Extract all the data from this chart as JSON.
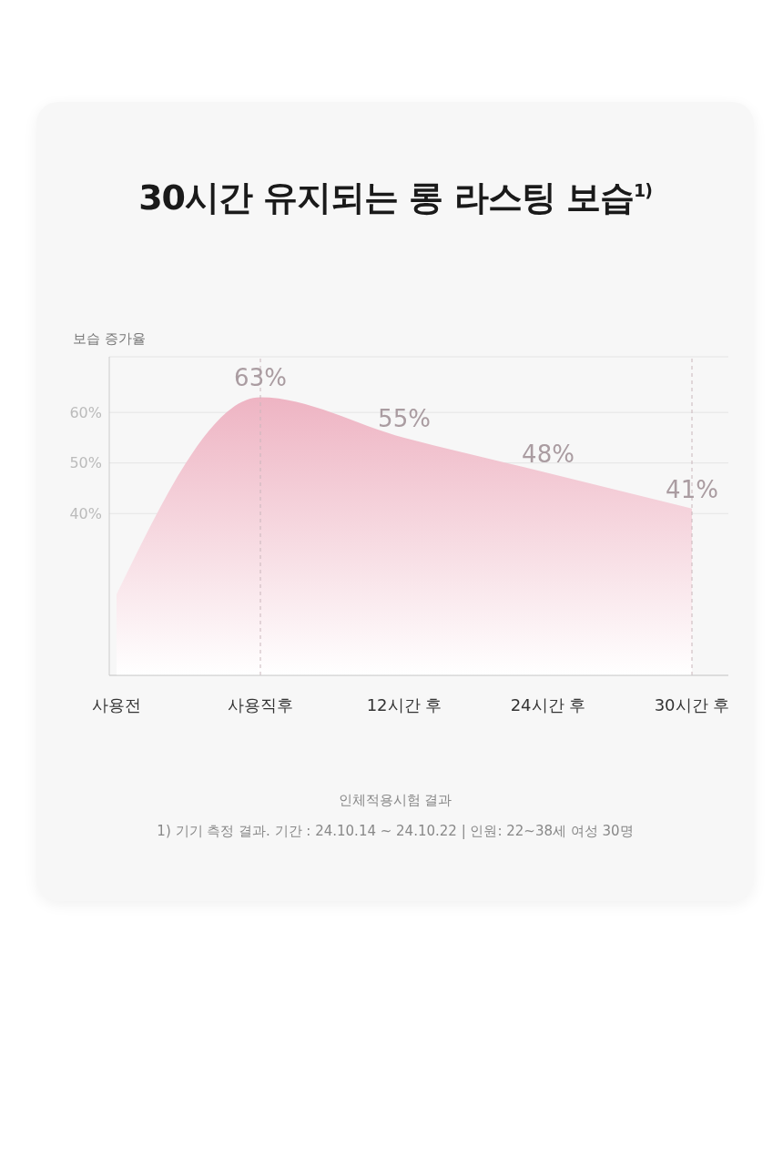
{
  "chart_data": {
    "type": "area",
    "title": "30시간 유지되는 롱 라스팅 보습$^{1)}$",
    "ylabel": "보습 증가율",
    "categories": [
      "사용전",
      "사용직후",
      "12시간 후",
      "24시간 후",
      "30시간 후"
    ],
    "series": [
      {
        "color": "#eeb4c3",
        "values": [
          24,
          63,
          55,
          48,
          41
        ],
        "value_labels": [
          null,
          "63%",
          "55%",
          "48%",
          "41%"
        ]
      }
    ],
    "ylim": [
      8,
      71
    ],
    "yticks": [
      {
        "value": 40,
        "label": "40%"
      },
      {
        "value": 50,
        "label": "50%"
      },
      {
        "value": 60,
        "label": "60%"
      }
    ],
    "grid": "y",
    "marker": "none",
    "ref_lines": [
      {
        "axis": "x",
        "value": "사용직후",
        "line_style": "dashed",
        "color": "#c9b6bb"
      },
      {
        "axis": "x",
        "value": "30시간 후",
        "line_style": "dashed",
        "color": "#c9b6bb"
      }
    ],
    "annotations": [
      "인체적용시험 결과",
      "1) 기기 측정 결과. 기간 : 24.10.14 ~ 24.10.22 | 인원: 22~38세 여성 30명"
    ]
  }
}
